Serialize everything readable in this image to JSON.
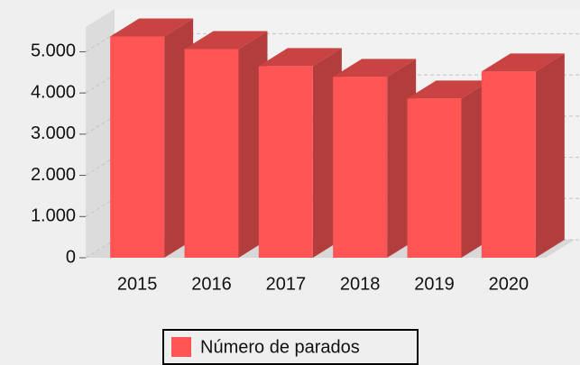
{
  "chart_data": {
    "type": "bar3d",
    "categories": [
      "2015",
      "2016",
      "2017",
      "2018",
      "2019",
      "2020"
    ],
    "series": [
      {
        "name": "Número de parados",
        "color": "#ff5555",
        "values": [
          5370,
          5065,
          4650,
          4390,
          3865,
          4520
        ]
      }
    ],
    "ylim": [
      0,
      5600
    ],
    "yticks": [
      {
        "value": 0,
        "label": "0"
      },
      {
        "value": 1000,
        "label": "1.000"
      },
      {
        "value": 2000,
        "label": "2.000"
      },
      {
        "value": 3000,
        "label": "3.000"
      },
      {
        "value": 4000,
        "label": "4.000"
      },
      {
        "value": 5000,
        "label": "5.000"
      }
    ],
    "grid": true
  }
}
